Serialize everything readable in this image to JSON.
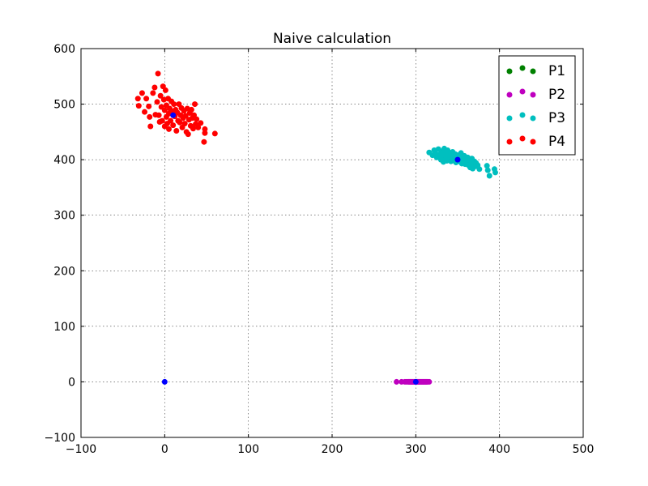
{
  "chart_data": {
    "type": "scatter",
    "title": "Naive calculation",
    "xlabel": "",
    "ylabel": "",
    "xlim": [
      -100,
      500
    ],
    "ylim": [
      -100,
      600
    ],
    "xticks": [
      -100,
      0,
      100,
      200,
      300,
      400,
      500
    ],
    "yticks": [
      -100,
      0,
      100,
      200,
      300,
      400,
      500,
      600
    ],
    "xtick_labels": [
      "−100",
      "0",
      "100",
      "200",
      "300",
      "400",
      "500"
    ],
    "ytick_labels": [
      "−100",
      "0",
      "100",
      "200",
      "300",
      "400",
      "500",
      "600"
    ],
    "grid": true,
    "legend_position": "top-right",
    "series": [
      {
        "name": "P1",
        "color": "#008000",
        "points": []
      },
      {
        "name": "P2",
        "color": "#bf00bf",
        "points": [
          [
            277,
            0
          ],
          [
            283,
            0
          ],
          [
            287,
            0
          ],
          [
            289,
            0
          ],
          [
            291,
            0
          ],
          [
            292,
            0
          ],
          [
            293,
            0
          ],
          [
            294,
            0
          ],
          [
            295,
            0
          ],
          [
            296,
            0
          ],
          [
            297,
            0
          ],
          [
            298,
            0
          ],
          [
            299,
            0
          ],
          [
            300,
            0
          ],
          [
            301,
            0
          ],
          [
            302,
            0
          ],
          [
            303,
            0
          ],
          [
            304,
            0
          ],
          [
            305,
            0
          ],
          [
            306,
            0
          ],
          [
            307,
            0
          ],
          [
            308,
            0
          ],
          [
            309,
            0
          ],
          [
            310,
            0
          ],
          [
            311,
            0
          ],
          [
            312,
            0
          ],
          [
            313,
            0
          ],
          [
            314,
            0
          ],
          [
            316,
            0
          ]
        ]
      },
      {
        "name": "P3",
        "color": "#00bfbf",
        "points": [
          [
            316,
            413
          ],
          [
            320,
            408
          ],
          [
            322,
            417
          ],
          [
            324,
            410
          ],
          [
            325,
            404
          ],
          [
            327,
            419
          ],
          [
            328,
            409
          ],
          [
            330,
            400
          ],
          [
            331,
            415
          ],
          [
            332,
            406
          ],
          [
            333,
            396
          ],
          [
            334,
            420
          ],
          [
            335,
            411
          ],
          [
            336,
            403
          ],
          [
            337,
            398
          ],
          [
            338,
            417
          ],
          [
            339,
            408
          ],
          [
            340,
            401
          ],
          [
            341,
            412
          ],
          [
            342,
            397
          ],
          [
            343,
            406
          ],
          [
            344,
            414
          ],
          [
            345,
            399
          ],
          [
            346,
            404
          ],
          [
            347,
            410
          ],
          [
            348,
            395
          ],
          [
            349,
            402
          ],
          [
            350,
            408
          ],
          [
            351,
            397
          ],
          [
            352,
            405
          ],
          [
            353,
            400
          ],
          [
            354,
            412
          ],
          [
            355,
            393
          ],
          [
            356,
            403
          ],
          [
            357,
            398
          ],
          [
            358,
            407
          ],
          [
            359,
            392
          ],
          [
            360,
            401
          ],
          [
            361,
            396
          ],
          [
            362,
            404
          ],
          [
            363,
            390
          ],
          [
            364,
            399
          ],
          [
            365,
            386
          ],
          [
            366,
            395
          ],
          [
            367,
            402
          ],
          [
            368,
            384
          ],
          [
            369,
            392
          ],
          [
            370,
            397
          ],
          [
            371,
            388
          ],
          [
            372,
            394
          ],
          [
            374,
            390
          ],
          [
            376,
            383
          ],
          [
            385,
            389
          ],
          [
            386,
            381
          ],
          [
            388,
            371
          ],
          [
            394,
            383
          ],
          [
            395,
            377
          ]
        ]
      },
      {
        "name": "P4",
        "color": "#ff0000",
        "points": [
          [
            -32,
            510
          ],
          [
            -31,
            497
          ],
          [
            -27,
            520
          ],
          [
            -24,
            486
          ],
          [
            -22,
            510
          ],
          [
            -19,
            496
          ],
          [
            -18,
            477
          ],
          [
            -17,
            460
          ],
          [
            -14,
            520
          ],
          [
            -12,
            530
          ],
          [
            -11,
            481
          ],
          [
            -9,
            504
          ],
          [
            -8,
            555
          ],
          [
            -7,
            480
          ],
          [
            -6,
            468
          ],
          [
            -5,
            515
          ],
          [
            -4,
            495
          ],
          [
            -3,
            470
          ],
          [
            -2,
            532
          ],
          [
            -1,
            508
          ],
          [
            0,
            489
          ],
          [
            0,
            460
          ],
          [
            1,
            525
          ],
          [
            2,
            477
          ],
          [
            2,
            498
          ],
          [
            3,
            465
          ],
          [
            4,
            510
          ],
          [
            5,
            483
          ],
          [
            5,
            455
          ],
          [
            6,
            492
          ],
          [
            7,
            470
          ],
          [
            8,
            505
          ],
          [
            9,
            487
          ],
          [
            10,
            462
          ],
          [
            11,
            500
          ],
          [
            12,
            478
          ],
          [
            13,
            490
          ],
          [
            14,
            452
          ],
          [
            15,
            485
          ],
          [
            16,
            470
          ],
          [
            17,
            500
          ],
          [
            18,
            467
          ],
          [
            19,
            480
          ],
          [
            20,
            493
          ],
          [
            21,
            458
          ],
          [
            22,
            475
          ],
          [
            23,
            488
          ],
          [
            24,
            465
          ],
          [
            25,
            479
          ],
          [
            26,
            450
          ],
          [
            27,
            492
          ],
          [
            28,
            446
          ],
          [
            29,
            472
          ],
          [
            30,
            484
          ],
          [
            31,
            461
          ],
          [
            32,
            490
          ],
          [
            33,
            475
          ],
          [
            34,
            456
          ],
          [
            35,
            480
          ],
          [
            36,
            500
          ],
          [
            37,
            464
          ],
          [
            38,
            473
          ],
          [
            40,
            458
          ],
          [
            43,
            466
          ],
          [
            47,
            432
          ],
          [
            48,
            455
          ],
          [
            48,
            448
          ],
          [
            60,
            447
          ]
        ]
      }
    ],
    "centroids": {
      "color": "#0000ff",
      "points": [
        [
          0,
          0
        ],
        [
          300,
          0
        ],
        [
          350,
          400
        ],
        [
          10,
          480
        ]
      ]
    }
  }
}
